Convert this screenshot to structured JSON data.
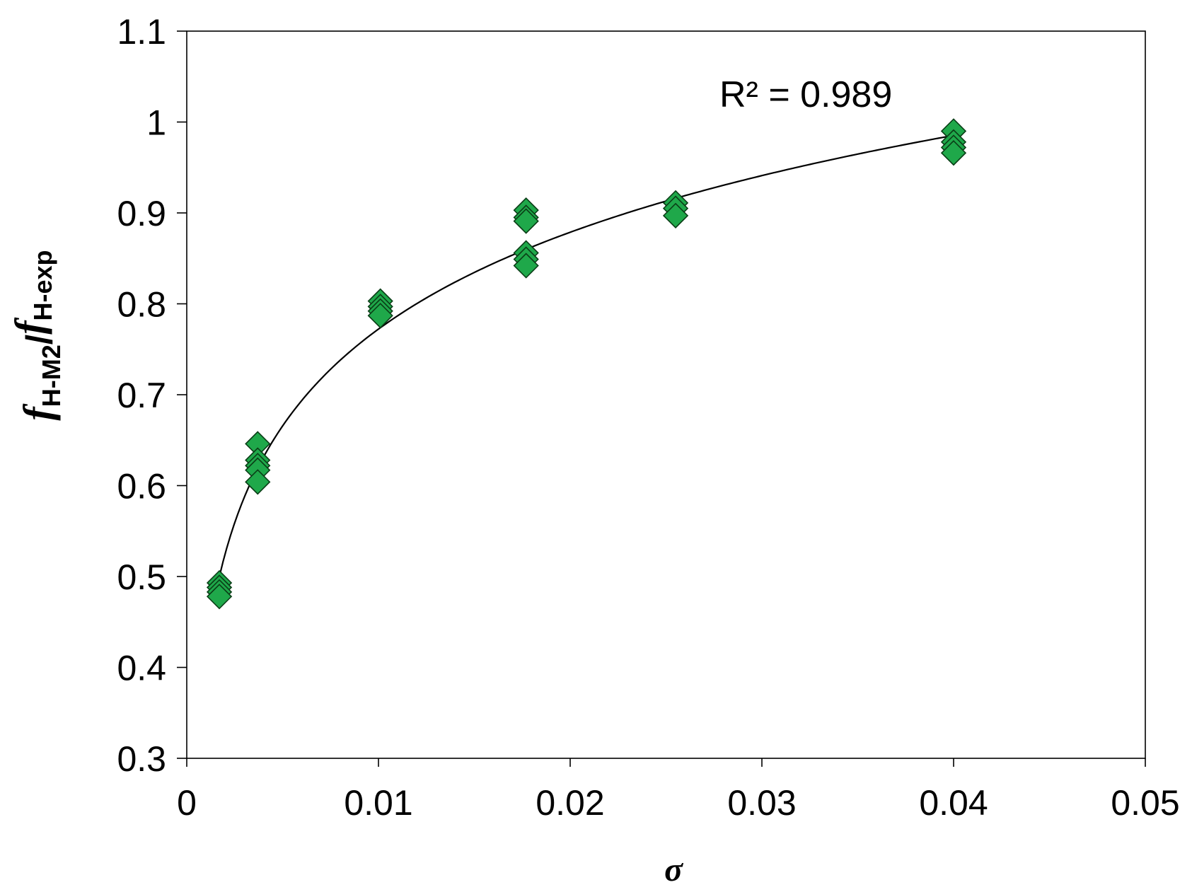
{
  "chart_data": {
    "type": "scatter",
    "xlabel": "σ",
    "ylabel": {
      "segments": [
        {
          "text": "f",
          "role": "italic"
        },
        {
          "text": "H-M2",
          "role": "sub"
        },
        {
          "text": "/",
          "role": "normal"
        },
        {
          "text": "f",
          "role": "italic"
        },
        {
          "text": "H-exp",
          "role": "sub"
        }
      ]
    },
    "xlim": [
      0,
      0.05
    ],
    "ylim": [
      0.3,
      1.1
    ],
    "x_ticks": [
      0,
      0.01,
      0.02,
      0.03,
      0.04,
      0.05
    ],
    "x_tick_labels": [
      "0",
      "0.01",
      "0.02",
      "0.03",
      "0.04",
      "0.05"
    ],
    "y_ticks": [
      0.3,
      0.4,
      0.5,
      0.6,
      0.7,
      0.8,
      0.9,
      1.0,
      1.1
    ],
    "y_tick_labels": [
      "0.3",
      "0.4",
      "0.5",
      "0.6",
      "0.7",
      "0.8",
      "0.9",
      "1",
      "1.1"
    ],
    "grid": false,
    "legend": "none",
    "marker_color": "#1fa84a",
    "marker_edge_color": "#0a3d16",
    "line_color": "#000000",
    "series": [
      {
        "marker": "diamond",
        "points": [
          {
            "x": 0.0017,
            "y": 0.493
          },
          {
            "x": 0.0017,
            "y": 0.488
          },
          {
            "x": 0.0017,
            "y": 0.483
          },
          {
            "x": 0.0017,
            "y": 0.478
          },
          {
            "x": 0.0037,
            "y": 0.646
          },
          {
            "x": 0.0037,
            "y": 0.628
          },
          {
            "x": 0.0037,
            "y": 0.622
          },
          {
            "x": 0.0037,
            "y": 0.617
          },
          {
            "x": 0.0037,
            "y": 0.604
          },
          {
            "x": 0.0101,
            "y": 0.803
          },
          {
            "x": 0.0101,
            "y": 0.797
          },
          {
            "x": 0.0101,
            "y": 0.792
          },
          {
            "x": 0.0101,
            "y": 0.787
          },
          {
            "x": 0.0177,
            "y": 0.903
          },
          {
            "x": 0.0177,
            "y": 0.895
          },
          {
            "x": 0.0177,
            "y": 0.891
          },
          {
            "x": 0.0177,
            "y": 0.856
          },
          {
            "x": 0.0177,
            "y": 0.849
          },
          {
            "x": 0.0177,
            "y": 0.842
          },
          {
            "x": 0.0255,
            "y": 0.911
          },
          {
            "x": 0.0255,
            "y": 0.905
          },
          {
            "x": 0.0255,
            "y": 0.897
          },
          {
            "x": 0.04,
            "y": 0.99
          },
          {
            "x": 0.04,
            "y": 0.978
          },
          {
            "x": 0.04,
            "y": 0.972
          },
          {
            "x": 0.04,
            "y": 0.966
          }
        ]
      }
    ],
    "trendline": {
      "type": "logarithmic",
      "a": 0.1537,
      "b": 1.48,
      "x_range": [
        0.0017,
        0.04
      ]
    },
    "annotation": "R² = 0.989"
  }
}
